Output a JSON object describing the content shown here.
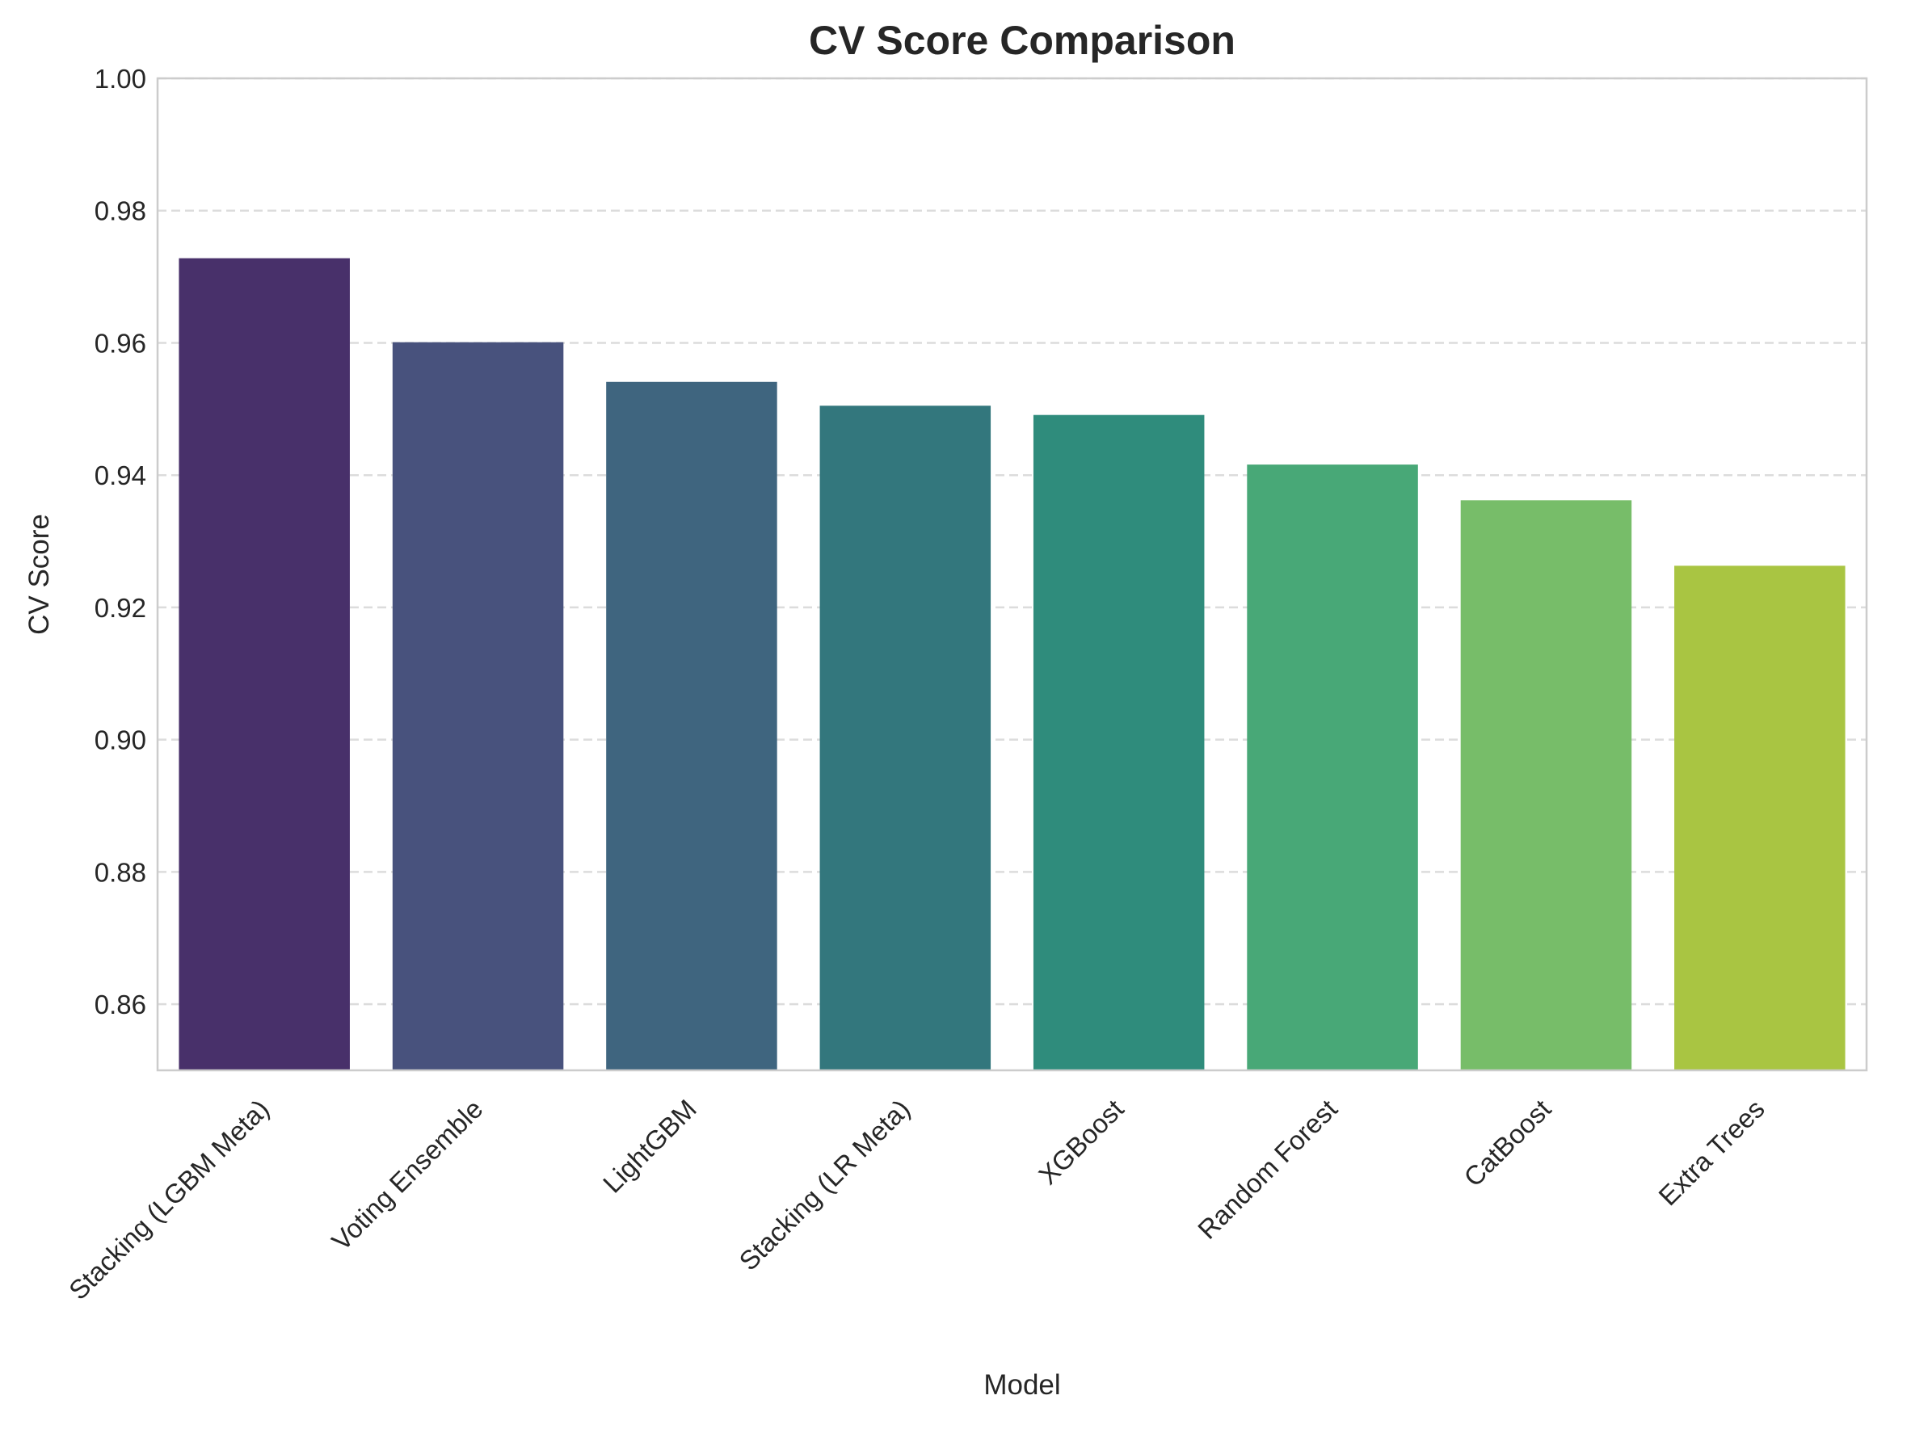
{
  "chart_data": {
    "type": "bar",
    "title": "CV Score Comparison",
    "xlabel": "Model",
    "ylabel": "CV Score",
    "categories": [
      "Stacking (LGBM Meta)",
      "Voting Ensemble",
      "LightGBM",
      "Stacking (LR Meta)",
      "XGBoost",
      "Random Forest",
      "CatBoost",
      "Extra Trees"
    ],
    "values": [
      0.9728,
      0.9601,
      0.9541,
      0.9505,
      0.9491,
      0.9416,
      0.9362,
      0.9263
    ],
    "colors": [
      "#48306a",
      "#48527d",
      "#3f657f",
      "#33777d",
      "#2f8c7c",
      "#48a877",
      "#77bd69",
      "#a9c542"
    ],
    "ylim": [
      0.85,
      1.0
    ],
    "yticks": [
      "0.86",
      "0.88",
      "0.90",
      "0.92",
      "0.94",
      "0.96",
      "0.98",
      "1.00"
    ],
    "grid": "y-dashed",
    "legend": "none"
  }
}
